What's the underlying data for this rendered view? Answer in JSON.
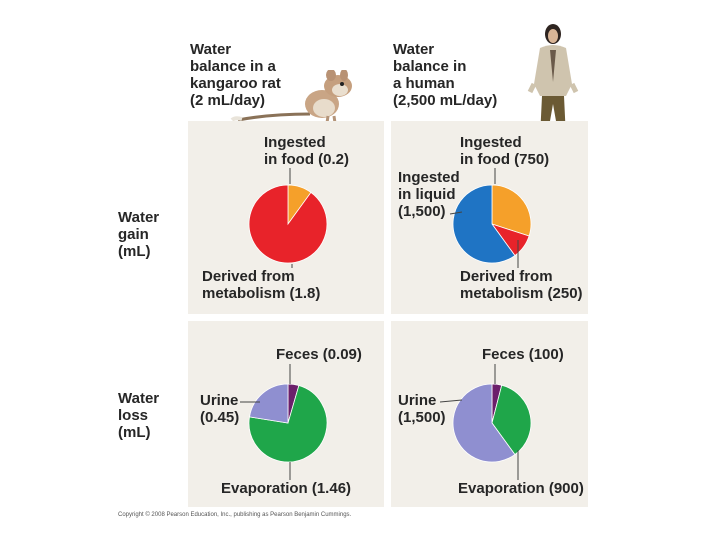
{
  "headers": {
    "rat": "Water\nbalance in a\nkangaroo rat\n(2 mL/day)",
    "human": "Water\nbalance in\na human\n(2,500 mL/day)"
  },
  "row_labels": {
    "gain": "Water\ngain\n(mL)",
    "loss": "Water\nloss\n(mL)"
  },
  "colors": {
    "panel_bg": "#f2efe9",
    "ingested_food": "#f5a02a",
    "metabolism": "#e8232a",
    "ingested_liquid": "#1f74c4",
    "feces": "#6b1f6b",
    "urine": "#8f8fd0",
    "evaporation": "#1fa64a"
  },
  "labels": {
    "rat_gain_food": "Ingested\nin food (0.2)",
    "rat_gain_metab": "Derived from\nmetabolism (1.8)",
    "human_gain_food": "Ingested\nin food (750)",
    "human_gain_liquid": "Ingested\nin liquid\n(1,500)",
    "human_gain_metab": "Derived from\nmetabolism (250)",
    "rat_loss_feces": "Feces (0.09)",
    "rat_loss_urine": "Urine\n(0.45)",
    "rat_loss_evap": "Evaporation (1.46)",
    "human_loss_feces": "Feces (100)",
    "human_loss_urine": "Urine\n(1,500)",
    "human_loss_evap": "Evaporation (900)"
  },
  "copyright": "Copyright © 2008 Pearson Education, Inc., publishing as Pearson Benjamin Cummings.",
  "chart_data": [
    {
      "type": "pie",
      "title": "",
      "slices": [
        {
          "label": "Ingested in food",
          "value": 0.2,
          "color": "#f5a02a"
        },
        {
          "label": "Derived from metabolism",
          "value": 1.8,
          "color": "#e8232a"
        }
      ]
    },
    {
      "type": "pie",
      "title": "",
      "slices": [
        {
          "label": "Ingested in food",
          "value": 750,
          "color": "#f5a02a"
        },
        {
          "label": "Derived from metabolism",
          "value": 250,
          "color": "#e8232a"
        },
        {
          "label": "Ingested in liquid",
          "value": 1500,
          "color": "#1f74c4"
        }
      ]
    },
    {
      "type": "pie",
      "title": "",
      "slices": [
        {
          "label": "Feces",
          "value": 0.09,
          "color": "#6b1f6b"
        },
        {
          "label": "Evaporation",
          "value": 1.46,
          "color": "#1fa64a"
        },
        {
          "label": "Urine",
          "value": 0.45,
          "color": "#8f8fd0"
        }
      ]
    },
    {
      "type": "pie",
      "title": "",
      "slices": [
        {
          "label": "Feces",
          "value": 100,
          "color": "#6b1f6b"
        },
        {
          "label": "Evaporation",
          "value": 900,
          "color": "#1fa64a"
        },
        {
          "label": "Urine",
          "value": 1500,
          "color": "#8f8fd0"
        }
      ]
    }
  ]
}
